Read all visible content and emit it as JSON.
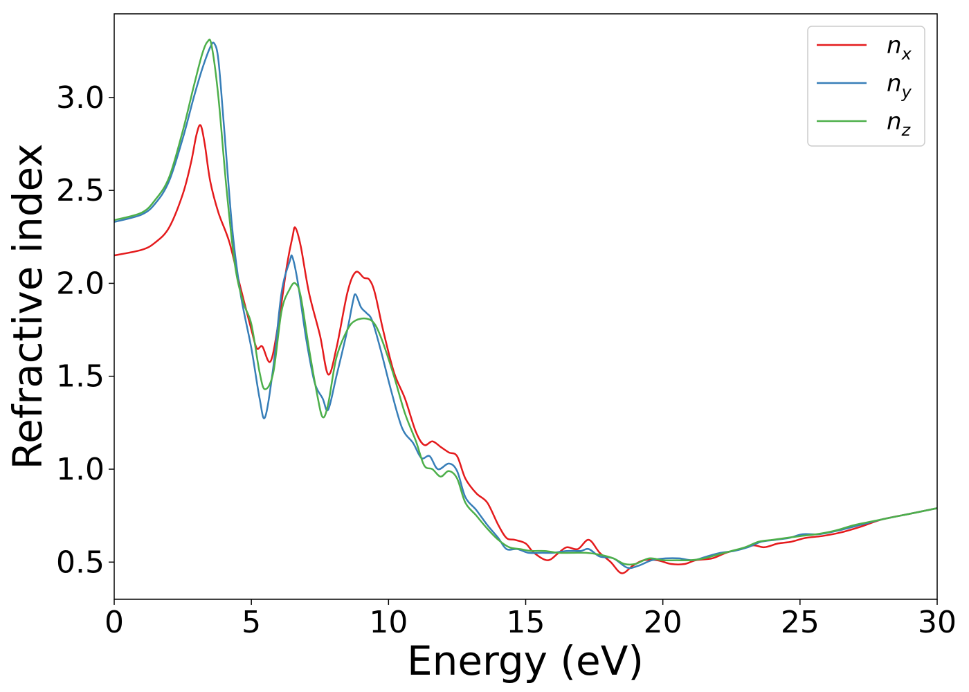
{
  "chart_data": {
    "type": "line",
    "title": "",
    "xlabel": "Energy (eV)",
    "ylabel": "Refractive index",
    "xlim": [
      0,
      30
    ],
    "ylim": [
      0.3,
      3.45
    ],
    "xticks": [
      0,
      5,
      10,
      15,
      20,
      25,
      30
    ],
    "yticks": [
      0.5,
      1.0,
      1.5,
      2.0,
      2.5,
      3.0
    ],
    "xtick_labels": [
      "0",
      "5",
      "10",
      "15",
      "20",
      "25",
      "30"
    ],
    "ytick_labels": [
      "0.5",
      "1.0",
      "1.5",
      "2.0",
      "2.5",
      "3.0"
    ],
    "grid": false,
    "legend_position": "top-right",
    "series": [
      {
        "name": "n_x",
        "label_main": "n",
        "label_sub": "x",
        "color": "#e41a1c",
        "points": [
          [
            0,
            2.15
          ],
          [
            1,
            2.18
          ],
          [
            1.5,
            2.22
          ],
          [
            2,
            2.3
          ],
          [
            2.5,
            2.48
          ],
          [
            2.8,
            2.65
          ],
          [
            3.0,
            2.8
          ],
          [
            3.15,
            2.85
          ],
          [
            3.3,
            2.75
          ],
          [
            3.5,
            2.55
          ],
          [
            3.8,
            2.38
          ],
          [
            4.2,
            2.22
          ],
          [
            4.6,
            1.98
          ],
          [
            5.0,
            1.75
          ],
          [
            5.2,
            1.65
          ],
          [
            5.4,
            1.66
          ],
          [
            5.7,
            1.58
          ],
          [
            6.0,
            1.8
          ],
          [
            6.3,
            2.1
          ],
          [
            6.5,
            2.25
          ],
          [
            6.6,
            2.3
          ],
          [
            6.8,
            2.2
          ],
          [
            7.1,
            1.95
          ],
          [
            7.5,
            1.72
          ],
          [
            7.8,
            1.51
          ],
          [
            8.1,
            1.65
          ],
          [
            8.5,
            1.95
          ],
          [
            8.8,
            2.06
          ],
          [
            9.1,
            2.03
          ],
          [
            9.3,
            2.02
          ],
          [
            9.5,
            1.95
          ],
          [
            9.8,
            1.75
          ],
          [
            10.2,
            1.52
          ],
          [
            10.6,
            1.38
          ],
          [
            11.0,
            1.2
          ],
          [
            11.3,
            1.13
          ],
          [
            11.6,
            1.15
          ],
          [
            11.9,
            1.12
          ],
          [
            12.2,
            1.09
          ],
          [
            12.5,
            1.07
          ],
          [
            12.8,
            0.95
          ],
          [
            13.2,
            0.87
          ],
          [
            13.6,
            0.82
          ],
          [
            14.0,
            0.7
          ],
          [
            14.3,
            0.63
          ],
          [
            14.6,
            0.62
          ],
          [
            15.0,
            0.6
          ],
          [
            15.3,
            0.55
          ],
          [
            15.8,
            0.51
          ],
          [
            16.2,
            0.55
          ],
          [
            16.5,
            0.58
          ],
          [
            16.9,
            0.57
          ],
          [
            17.3,
            0.62
          ],
          [
            17.7,
            0.55
          ],
          [
            18.1,
            0.5
          ],
          [
            18.5,
            0.44
          ],
          [
            18.9,
            0.48
          ],
          [
            19.3,
            0.51
          ],
          [
            19.8,
            0.51
          ],
          [
            20.3,
            0.49
          ],
          [
            20.8,
            0.49
          ],
          [
            21.2,
            0.51
          ],
          [
            21.8,
            0.52
          ],
          [
            22.3,
            0.55
          ],
          [
            22.8,
            0.57
          ],
          [
            23.3,
            0.59
          ],
          [
            23.7,
            0.58
          ],
          [
            24.2,
            0.6
          ],
          [
            24.7,
            0.61
          ],
          [
            25.2,
            0.63
          ],
          [
            25.8,
            0.64
          ],
          [
            26.5,
            0.66
          ],
          [
            27.2,
            0.69
          ],
          [
            28.0,
            0.73
          ],
          [
            29.0,
            0.76
          ],
          [
            30.0,
            0.79
          ]
        ]
      },
      {
        "name": "n_y",
        "label_main": "n",
        "label_sub": "y",
        "color": "#377eb8",
        "points": [
          [
            0,
            2.33
          ],
          [
            1,
            2.37
          ],
          [
            1.5,
            2.43
          ],
          [
            2,
            2.55
          ],
          [
            2.5,
            2.78
          ],
          [
            2.9,
            3.0
          ],
          [
            3.2,
            3.15
          ],
          [
            3.5,
            3.27
          ],
          [
            3.65,
            3.29
          ],
          [
            3.8,
            3.2
          ],
          [
            4.0,
            2.85
          ],
          [
            4.3,
            2.3
          ],
          [
            4.6,
            1.95
          ],
          [
            5.0,
            1.65
          ],
          [
            5.3,
            1.38
          ],
          [
            5.5,
            1.28
          ],
          [
            5.8,
            1.55
          ],
          [
            6.1,
            1.95
          ],
          [
            6.4,
            2.12
          ],
          [
            6.5,
            2.14
          ],
          [
            6.7,
            2.0
          ],
          [
            7.0,
            1.7
          ],
          [
            7.3,
            1.47
          ],
          [
            7.6,
            1.38
          ],
          [
            7.8,
            1.32
          ],
          [
            8.1,
            1.5
          ],
          [
            8.5,
            1.75
          ],
          [
            8.7,
            1.9
          ],
          [
            8.8,
            1.94
          ],
          [
            9.0,
            1.87
          ],
          [
            9.2,
            1.84
          ],
          [
            9.4,
            1.8
          ],
          [
            9.7,
            1.65
          ],
          [
            10.1,
            1.42
          ],
          [
            10.5,
            1.22
          ],
          [
            10.9,
            1.14
          ],
          [
            11.2,
            1.06
          ],
          [
            11.5,
            1.07
          ],
          [
            11.8,
            1.0
          ],
          [
            12.2,
            1.03
          ],
          [
            12.5,
            0.99
          ],
          [
            12.8,
            0.85
          ],
          [
            13.2,
            0.78
          ],
          [
            13.6,
            0.7
          ],
          [
            14.0,
            0.63
          ],
          [
            14.3,
            0.57
          ],
          [
            14.7,
            0.57
          ],
          [
            15.1,
            0.55
          ],
          [
            15.6,
            0.55
          ],
          [
            16.0,
            0.55
          ],
          [
            16.5,
            0.56
          ],
          [
            17.0,
            0.56
          ],
          [
            17.3,
            0.57
          ],
          [
            17.7,
            0.53
          ],
          [
            18.2,
            0.52
          ],
          [
            18.7,
            0.47
          ],
          [
            19.1,
            0.48
          ],
          [
            19.6,
            0.51
          ],
          [
            20.1,
            0.52
          ],
          [
            20.6,
            0.52
          ],
          [
            21.1,
            0.51
          ],
          [
            21.6,
            0.53
          ],
          [
            22.1,
            0.55
          ],
          [
            22.6,
            0.56
          ],
          [
            23.1,
            0.58
          ],
          [
            23.6,
            0.61
          ],
          [
            24.1,
            0.62
          ],
          [
            24.6,
            0.63
          ],
          [
            25.1,
            0.65
          ],
          [
            25.7,
            0.65
          ],
          [
            26.4,
            0.67
          ],
          [
            27.2,
            0.7
          ],
          [
            28.0,
            0.73
          ],
          [
            29.0,
            0.76
          ],
          [
            30.0,
            0.79
          ]
        ]
      },
      {
        "name": "n_z",
        "label_main": "n",
        "label_sub": "z",
        "color": "#4daf4a",
        "points": [
          [
            0,
            2.34
          ],
          [
            1,
            2.38
          ],
          [
            1.5,
            2.45
          ],
          [
            2,
            2.57
          ],
          [
            2.5,
            2.82
          ],
          [
            2.9,
            3.06
          ],
          [
            3.2,
            3.23
          ],
          [
            3.4,
            3.3
          ],
          [
            3.55,
            3.28
          ],
          [
            3.8,
            3.0
          ],
          [
            4.1,
            2.5
          ],
          [
            4.4,
            2.1
          ],
          [
            4.7,
            1.9
          ],
          [
            5.0,
            1.78
          ],
          [
            5.3,
            1.52
          ],
          [
            5.5,
            1.43
          ],
          [
            5.8,
            1.52
          ],
          [
            6.1,
            1.85
          ],
          [
            6.4,
            1.97
          ],
          [
            6.6,
            2.0
          ],
          [
            6.8,
            1.93
          ],
          [
            7.1,
            1.65
          ],
          [
            7.4,
            1.4
          ],
          [
            7.6,
            1.28
          ],
          [
            7.8,
            1.35
          ],
          [
            8.1,
            1.6
          ],
          [
            8.5,
            1.75
          ],
          [
            8.8,
            1.8
          ],
          [
            9.2,
            1.81
          ],
          [
            9.5,
            1.78
          ],
          [
            9.8,
            1.68
          ],
          [
            10.2,
            1.5
          ],
          [
            10.6,
            1.3
          ],
          [
            11.0,
            1.15
          ],
          [
            11.3,
            1.02
          ],
          [
            11.6,
            1.0
          ],
          [
            11.9,
            0.96
          ],
          [
            12.2,
            0.99
          ],
          [
            12.5,
            0.95
          ],
          [
            12.8,
            0.82
          ],
          [
            13.2,
            0.75
          ],
          [
            13.6,
            0.68
          ],
          [
            14.0,
            0.62
          ],
          [
            14.4,
            0.58
          ],
          [
            14.8,
            0.57
          ],
          [
            15.2,
            0.56
          ],
          [
            15.7,
            0.56
          ],
          [
            16.2,
            0.55
          ],
          [
            16.7,
            0.55
          ],
          [
            17.2,
            0.55
          ],
          [
            17.7,
            0.54
          ],
          [
            18.2,
            0.52
          ],
          [
            18.6,
            0.49
          ],
          [
            19.0,
            0.49
          ],
          [
            19.5,
            0.52
          ],
          [
            20.0,
            0.51
          ],
          [
            20.5,
            0.51
          ],
          [
            21.0,
            0.51
          ],
          [
            21.5,
            0.52
          ],
          [
            22.0,
            0.54
          ],
          [
            22.5,
            0.56
          ],
          [
            23.0,
            0.58
          ],
          [
            23.5,
            0.61
          ],
          [
            24.0,
            0.62
          ],
          [
            24.5,
            0.63
          ],
          [
            25.0,
            0.64
          ],
          [
            25.6,
            0.65
          ],
          [
            26.3,
            0.67
          ],
          [
            27.0,
            0.7
          ],
          [
            28.0,
            0.73
          ],
          [
            29.0,
            0.76
          ],
          [
            30.0,
            0.79
          ]
        ]
      }
    ]
  }
}
